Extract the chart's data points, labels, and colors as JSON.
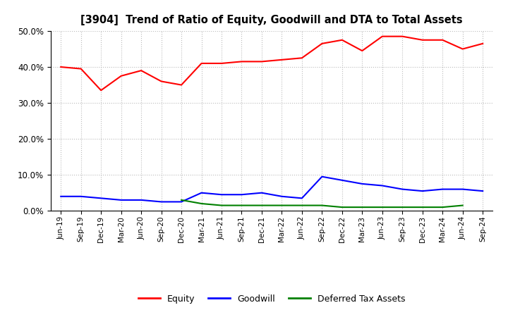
{
  "title": "[3904]  Trend of Ratio of Equity, Goodwill and DTA to Total Assets",
  "x_labels": [
    "Jun-19",
    "Sep-19",
    "Dec-19",
    "Mar-20",
    "Jun-20",
    "Sep-20",
    "Dec-20",
    "Mar-21",
    "Jun-21",
    "Sep-21",
    "Dec-21",
    "Mar-22",
    "Jun-22",
    "Sep-22",
    "Dec-22",
    "Mar-23",
    "Jun-23",
    "Sep-23",
    "Dec-23",
    "Mar-24",
    "Jun-24",
    "Sep-24"
  ],
  "equity": [
    40.0,
    39.5,
    33.5,
    37.5,
    39.0,
    36.0,
    35.0,
    41.0,
    41.0,
    41.5,
    41.5,
    42.0,
    42.5,
    46.5,
    47.5,
    44.5,
    48.5,
    48.5,
    47.5,
    47.5,
    45.0,
    46.5
  ],
  "goodwill": [
    4.0,
    4.0,
    3.5,
    3.0,
    3.0,
    2.5,
    2.5,
    5.0,
    4.5,
    4.5,
    5.0,
    4.0,
    3.5,
    9.5,
    8.5,
    7.5,
    7.0,
    6.0,
    5.5,
    6.0,
    6.0,
    5.5
  ],
  "dta": [
    null,
    null,
    null,
    null,
    null,
    null,
    3.0,
    2.0,
    1.5,
    1.5,
    1.5,
    1.5,
    1.5,
    1.5,
    1.0,
    1.0,
    1.0,
    1.0,
    1.0,
    1.0,
    1.5,
    null
  ],
  "equity_color": "#ff0000",
  "goodwill_color": "#0000ff",
  "dta_color": "#008000",
  "ylim": [
    0.0,
    50.0
  ],
  "yticks": [
    0.0,
    10.0,
    20.0,
    30.0,
    40.0,
    50.0
  ],
  "legend_labels": [
    "Equity",
    "Goodwill",
    "Deferred Tax Assets"
  ],
  "bg_color": "#ffffff",
  "grid_color": "#bbbbbb"
}
